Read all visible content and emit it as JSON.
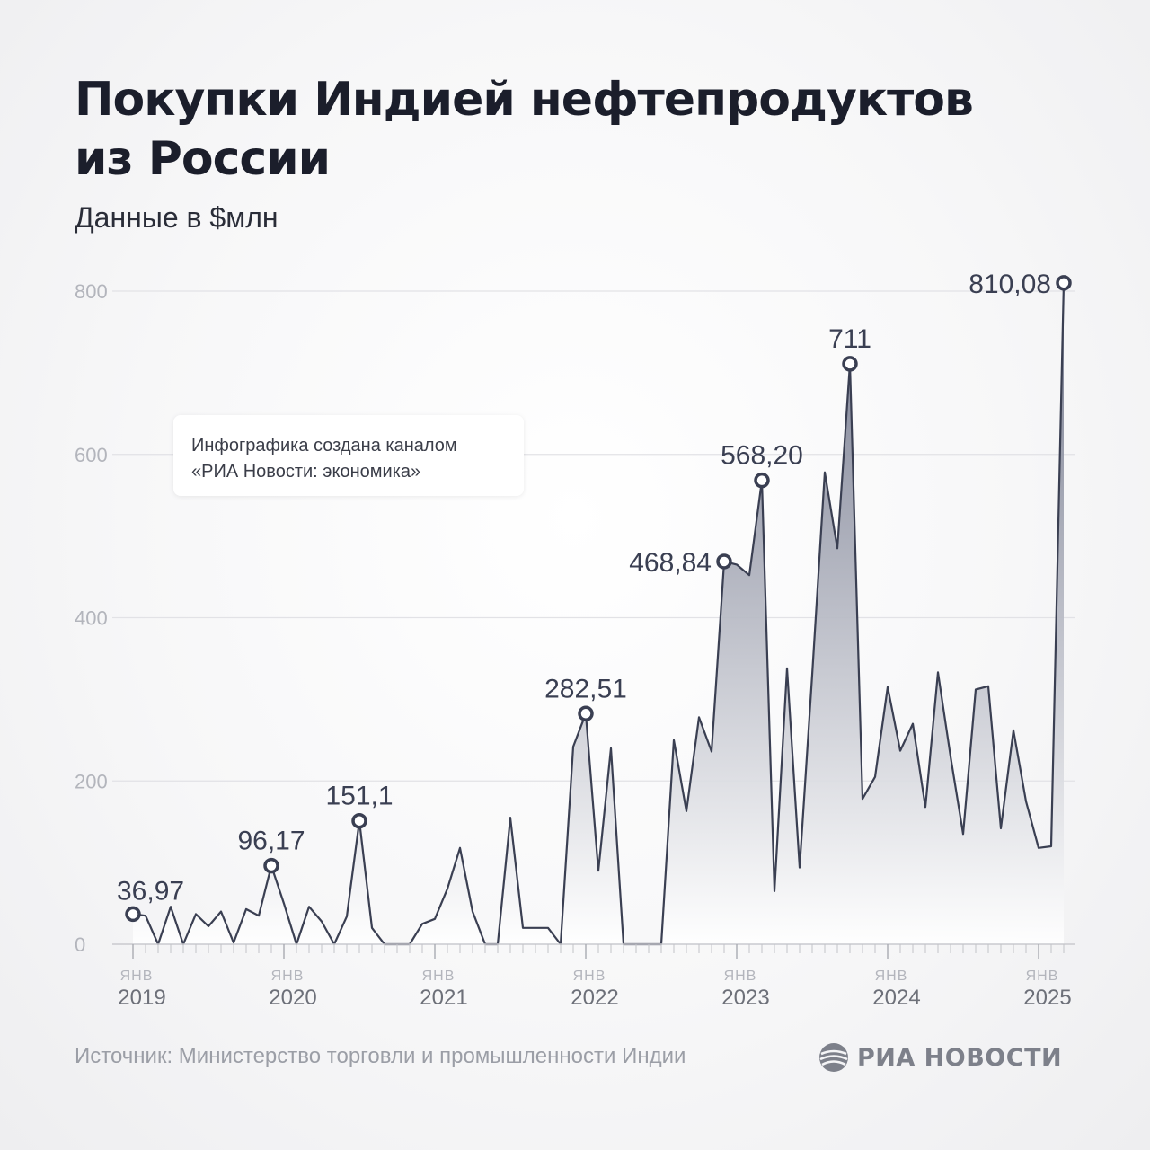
{
  "header": {
    "title_line1": "Покупки Индией нефтепродуктов",
    "title_line2": "из России",
    "subtitle": "Данные в $млн"
  },
  "note": {
    "line1": "Инфографика создана каналом",
    "line2": "«РИА Новости: экономика»"
  },
  "footer": {
    "source": "Источник: Министерство торговли и промышленности Индии",
    "logo_text": "РИА НОВОСТИ"
  },
  "colors": {
    "line": "#3a3f52",
    "area_top": "#6f7489",
    "area_bottom": "#ffffff",
    "grid": "#e2e2e6",
    "tick_label": "#b3b5bc",
    "value_label": "#3a3f52"
  },
  "chart_data": {
    "type": "area",
    "title": "Покупки Индией нефтепродуктов из России",
    "subtitle": "Данные в $млн",
    "xlabel": "",
    "ylabel": "",
    "ylim": [
      0,
      800
    ],
    "yticks": [
      0,
      200,
      400,
      600,
      800
    ],
    "grid": true,
    "month_label": "ЯНВ",
    "years": [
      "2019",
      "2020",
      "2021",
      "2022",
      "2023",
      "2024",
      "2025"
    ],
    "x_start": "2019-01",
    "x_end": "2025-03",
    "values": [
      36.97,
      35,
      0,
      46,
      0,
      37,
      22,
      40,
      2,
      43,
      35,
      96.17,
      50,
      0,
      46,
      28,
      0,
      34,
      151.1,
      20,
      0,
      0,
      0,
      25,
      31,
      68,
      118,
      40,
      0,
      0,
      155,
      20,
      20,
      20,
      0,
      242,
      282.51,
      90,
      240,
      0,
      0,
      0,
      0,
      250,
      163,
      278,
      236,
      468.84,
      465,
      452,
      568.2,
      65,
      338,
      94,
      330,
      578,
      485,
      711,
      178,
      205,
      315,
      237,
      270,
      168,
      333,
      230,
      135,
      312,
      316,
      142,
      262,
      175,
      118,
      120,
      810.08
    ],
    "annotations": [
      {
        "index": 0,
        "label": "36,97"
      },
      {
        "index": 11,
        "label": "96,17"
      },
      {
        "index": 18,
        "label": "151,1"
      },
      {
        "index": 36,
        "label": "282,51"
      },
      {
        "index": 47,
        "label": "468,84"
      },
      {
        "index": 50,
        "label": "568,20"
      },
      {
        "index": 57,
        "label": "711"
      },
      {
        "index": 74,
        "label": "810,08"
      }
    ]
  }
}
